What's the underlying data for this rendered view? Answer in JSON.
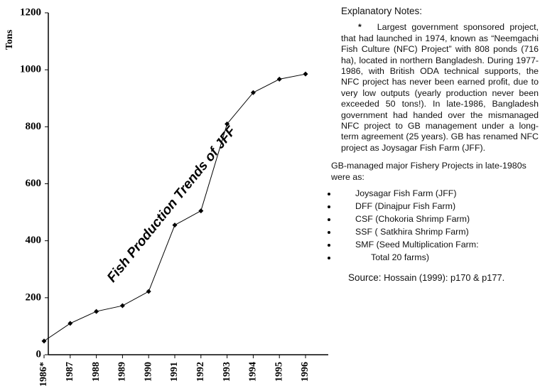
{
  "chart_data": {
    "type": "line",
    "title": "Fish Production Trends of JFF",
    "ylabel": "Tons",
    "categories": [
      "1986*",
      "1987",
      "1988",
      "1989",
      "1990",
      "1991",
      "1992",
      "1993",
      "1994",
      "1995",
      "1996"
    ],
    "values": [
      48,
      110,
      152,
      172,
      222,
      455,
      505,
      810,
      920,
      967,
      985
    ],
    "color": "#000000",
    "ylim": [
      0,
      1200
    ],
    "yticks": [
      0,
      200,
      400,
      600,
      800,
      1000,
      1200
    ]
  },
  "notes": {
    "heading": "Explanatory Notes:",
    "asterisk": "*",
    "body": "Largest government sponsored project, that had launched in 1974, known as “Neemgachi Fish Culture (NFC) Project” with 808 ponds (716 ha), located in northern Bangladesh. During 1977-1986, with British ODA technical supports, the NFC project has never been earned profit, due to very low outputs (yearly production never been exceeded 50 tons!). In late-1986, Bangladesh government had handed over the mismanaged NFC project to GB management under a long-term agreement (25 years). GB has renamed NFC project as Joysagar Fish Farm (JFF).",
    "intro": "GB-managed major Fishery Projects in late-1980s were as:",
    "items": [
      "Joysagar Fish Farm (JFF)",
      "DFF (Dinajpur Fish Farm)",
      "CSF (Chokoria Shrimp Farm)",
      "SSF ( Satkhira Shrimp Farm)",
      "SMF (Seed Multiplication Farm:",
      "Total 20 farms)"
    ],
    "source_label": "Source:",
    "source_text": "Hossain (1999): p170 & p177."
  }
}
